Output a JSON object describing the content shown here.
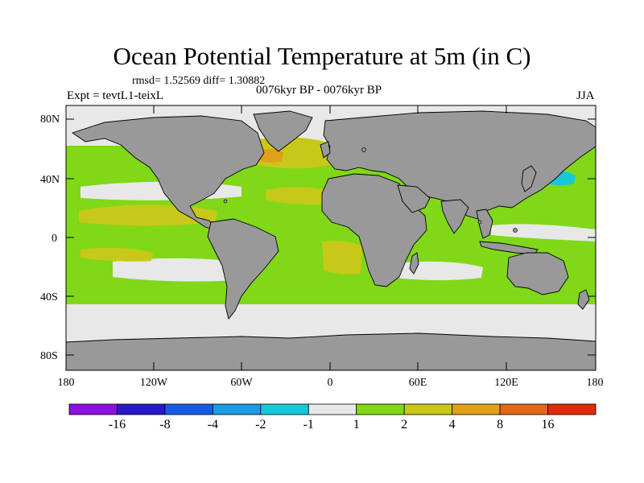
{
  "title": "Ocean Potential Temperature at 5m (in C)",
  "stats": "rmsd= 1.52569 diff= 1.30882",
  "experiment": "Expt = tevtL1-teixL",
  "period": "0076kyr BP - 0076kyr BP",
  "season": "JJA",
  "lat_labels": [
    "80N",
    "40N",
    "0",
    "40S",
    "80S"
  ],
  "lon_labels": [
    "180",
    "120W",
    "60W",
    "0",
    "60E",
    "120E",
    "180"
  ],
  "colorbar": {
    "colors": [
      "#8a10e0",
      "#2a18c8",
      "#1a5ae0",
      "#1e9ae0",
      "#18c8d8",
      "#e8e8e8",
      "#80d818",
      "#c8c818",
      "#e0a018",
      "#e06818",
      "#e02a0a"
    ],
    "labels": [
      "-16",
      "-8",
      "-4",
      "-2",
      "-1",
      "1",
      "2",
      "4",
      "8",
      "16"
    ]
  },
  "colors": {
    "land": "#999999",
    "frame": "#000000"
  }
}
